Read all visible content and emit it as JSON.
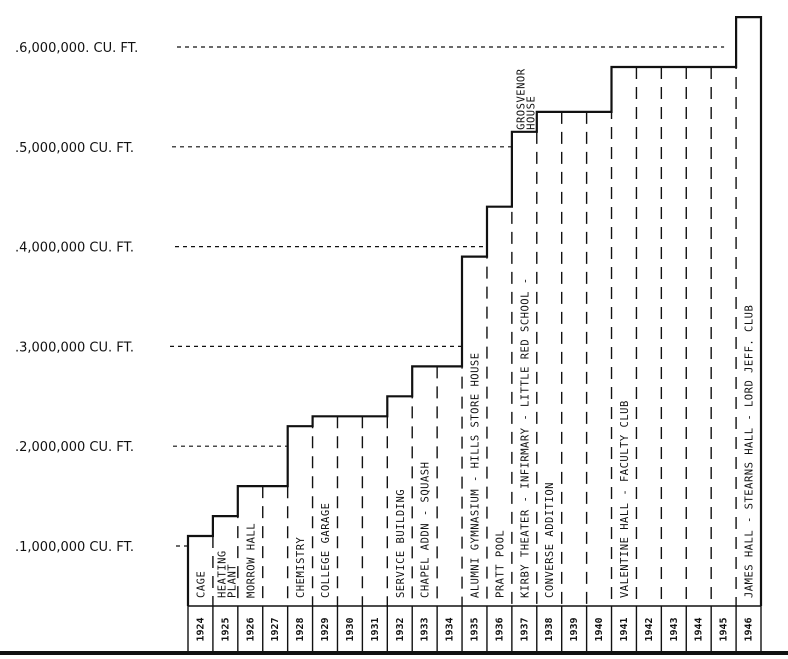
{
  "chart_data": {
    "type": "area",
    "title": "",
    "xlabel": "",
    "ylabel": "",
    "unit": "CU. FT.",
    "y_tick_labels": [
      "1,000,000 CU. FT.",
      "2,000,000 CU. FT.",
      "3,000,000 CU. FT.",
      "4,000,000 CU. FT.",
      "5,000,000 CU. FT.",
      "6,000,000. CU. FT."
    ],
    "y_ticks": [
      1000000,
      2000000,
      3000000,
      4000000,
      5000000,
      6000000
    ],
    "ylim": [
      0,
      6400000
    ],
    "x": [
      "1924",
      "1925",
      "1926",
      "1927",
      "1928",
      "1929",
      "1930",
      "1931",
      "1932",
      "1933",
      "1934",
      "1935",
      "1936",
      "1937",
      "1938",
      "1939",
      "1940",
      "1941",
      "1942",
      "1943",
      "1944",
      "1945",
      "1946"
    ],
    "values": [
      1100000,
      1300000,
      1600000,
      1600000,
      2200000,
      2300000,
      2300000,
      2300000,
      2500000,
      2800000,
      2800000,
      3900000,
      4400000,
      5150000,
      5350000,
      5350000,
      5350000,
      5800000,
      5800000,
      5800000,
      5800000,
      5800000,
      6300000
    ],
    "building_labels": [
      {
        "year": "1924",
        "text": "CAGE"
      },
      {
        "year": "1925",
        "text": "HEATING PLANT"
      },
      {
        "year": "1926",
        "text": "MORROW HALL"
      },
      {
        "year": "1928",
        "text": "CHEMISTRY"
      },
      {
        "year": "1929",
        "text": "COLLEGE GARAGE"
      },
      {
        "year": "1932",
        "text": "SERVICE BUILDING"
      },
      {
        "year": "1933",
        "text": "CHAPEL ADDN - SQUASH"
      },
      {
        "year": "1935",
        "text": "ALUMNI GYMNASIUM - HILLS STORE HOUSE"
      },
      {
        "year": "1936",
        "text": "PRATT POOL"
      },
      {
        "year": "1937",
        "text": "KIRBY THEATER - INFIRMARY - LITTLE RED SCHOOL - GROSVENOR HOUSE"
      },
      {
        "year": "1938",
        "text": "CONVERSE ADDITION"
      },
      {
        "year": "1941",
        "text": "VALENTINE HALL - FACULTY CLUB"
      },
      {
        "year": "1946",
        "text": "JAMES HALL - STEARNS HALL - LORD JEFF. CLUB"
      }
    ],
    "grid": false
  }
}
